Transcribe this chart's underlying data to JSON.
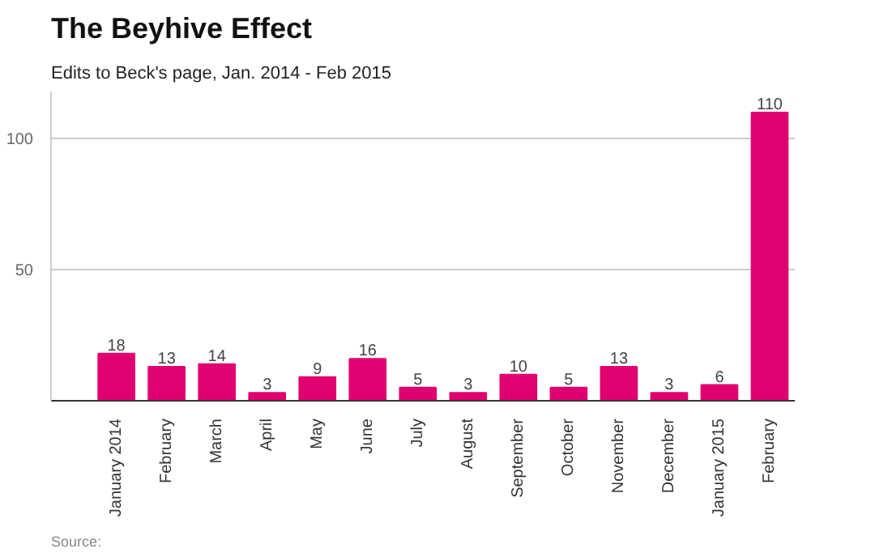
{
  "chart_data": {
    "type": "bar",
    "title": "The Beyhive Effect",
    "subtitle": "Edits to Beck's page, Jan. 2014 - Feb 2015",
    "categories": [
      "January 2014",
      "February",
      "March",
      "April",
      "May",
      "June",
      "July",
      "August",
      "September",
      "October",
      "November",
      "December",
      "January 2015",
      "February"
    ],
    "values": [
      18,
      13,
      14,
      3,
      9,
      16,
      5,
      3,
      10,
      5,
      13,
      3,
      6,
      110
    ],
    "color": "#e0006f",
    "ylim": [
      0,
      118
    ],
    "yticks": [
      50,
      100
    ],
    "grid": "y",
    "data_labels": true,
    "annotations": [
      "Source:"
    ]
  }
}
